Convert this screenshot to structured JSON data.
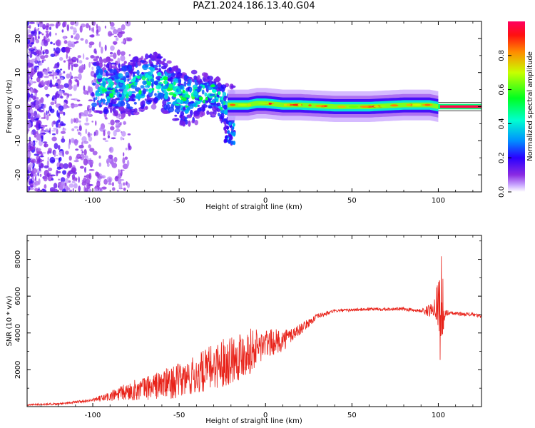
{
  "title": "PAZ1.2024.186.13.40.G04",
  "chart_data": [
    {
      "type": "heatmap",
      "xlabel": "Height of straight line (km)",
      "ylabel": "Frequency (Hz)",
      "xlim": [
        -138,
        125
      ],
      "ylim": [
        -25,
        25
      ],
      "xticks": [
        -100,
        -50,
        0,
        50,
        100
      ],
      "yticks": [
        -20,
        -10,
        0,
        10,
        20
      ],
      "colorbar": {
        "label": "Normalized spectral amplitude",
        "range": [
          0,
          1
        ],
        "ticks": [
          "0.0",
          "0.2",
          "0.4",
          "0.6",
          "0.8"
        ],
        "colormap": "gist_rainbow_r"
      },
      "ridge": {
        "x": [
          -95,
          -90,
          -85,
          -80,
          -75,
          -70,
          -65,
          -60,
          -55,
          -50,
          -45,
          -40,
          -35,
          -30,
          -25,
          -22,
          -20,
          -15,
          -10,
          -5,
          0,
          10,
          20,
          40,
          60,
          80,
          95,
          100,
          105,
          125
        ],
        "y": [
          6,
          5,
          5,
          5,
          6,
          7,
          8,
          7,
          5,
          3,
          2,
          3,
          4,
          3,
          1,
          0.5,
          0.5,
          0.5,
          0.5,
          1,
          1,
          0.5,
          0.5,
          0,
          0,
          0.5,
          0.5,
          0,
          0,
          0
        ]
      }
    },
    {
      "type": "line",
      "xlabel": "Height of straight line (km)",
      "ylabel": "SNR (10 * v/v)",
      "xlim": [
        -138,
        125
      ],
      "ylim": [
        0,
        9300
      ],
      "xticks": [
        -100,
        -50,
        0,
        50,
        100
      ],
      "yticks": [
        2000,
        4000,
        6000,
        8000
      ],
      "color": "#e8231a",
      "series": [
        {
          "x": [
            -138,
            -120,
            -110,
            -100,
            -90,
            -80,
            -70,
            -60,
            -50,
            -40,
            -30,
            -20,
            -10,
            0,
            10,
            20,
            30,
            40,
            60,
            80,
            90,
            95,
            100,
            101,
            102,
            103,
            105,
            110,
            120,
            125
          ],
          "y": [
            100,
            150,
            250,
            350,
            550,
            800,
            1000,
            1200,
            1400,
            1700,
            2200,
            2600,
            3000,
            3400,
            3600,
            4200,
            4900,
            5200,
            5300,
            5300,
            5200,
            5200,
            5700,
            5000,
            6000,
            4800,
            5100,
            5050,
            5000,
            4900
          ]
        }
      ],
      "noise": {
        "x": [
          -138,
          -100,
          -80,
          -60,
          -40,
          -20,
          -10,
          0,
          10,
          20,
          30,
          40,
          90,
          98,
          100,
          102,
          103,
          104,
          106,
          125
        ],
        "amplitude": [
          40,
          80,
          500,
          800,
          1100,
          1400,
          1300,
          800,
          600,
          300,
          150,
          80,
          100,
          500,
          1500,
          3500,
          900,
          300,
          100,
          100
        ]
      }
    }
  ]
}
